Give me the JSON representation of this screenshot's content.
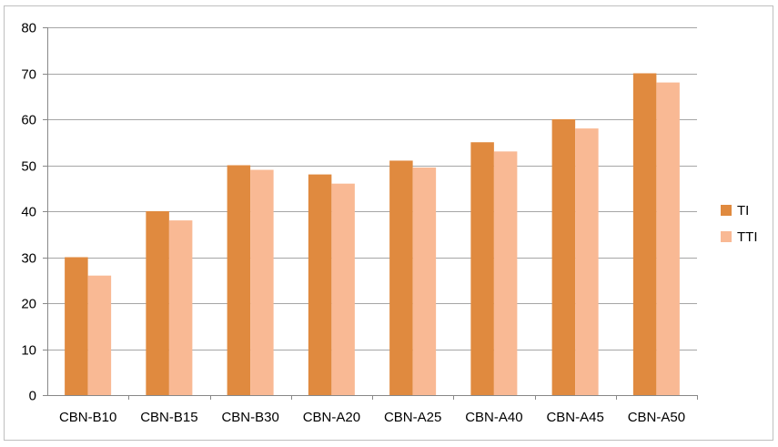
{
  "chart_data": {
    "type": "bar",
    "title": "",
    "xlabel": "",
    "ylabel": "",
    "categories": [
      "CBN-B10",
      "CBN-B15",
      "CBN-B30",
      "CBN-A20",
      "CBN-A25",
      "CBN-A40",
      "CBN-A45",
      "CBN-A50"
    ],
    "series": [
      {
        "name": "TI",
        "color": "#e08a3f",
        "values": [
          30,
          40,
          50,
          48,
          51,
          55,
          60,
          70
        ]
      },
      {
        "name": "TTI",
        "color": "#f9b994",
        "values": [
          26,
          38,
          49,
          46,
          49.5,
          53,
          58,
          68
        ]
      }
    ],
    "ylim": [
      0,
      80
    ],
    "yticks": [
      "0",
      "10",
      "20",
      "30",
      "40",
      "50",
      "60",
      "70",
      "80"
    ],
    "grid": true,
    "legend": "right"
  }
}
